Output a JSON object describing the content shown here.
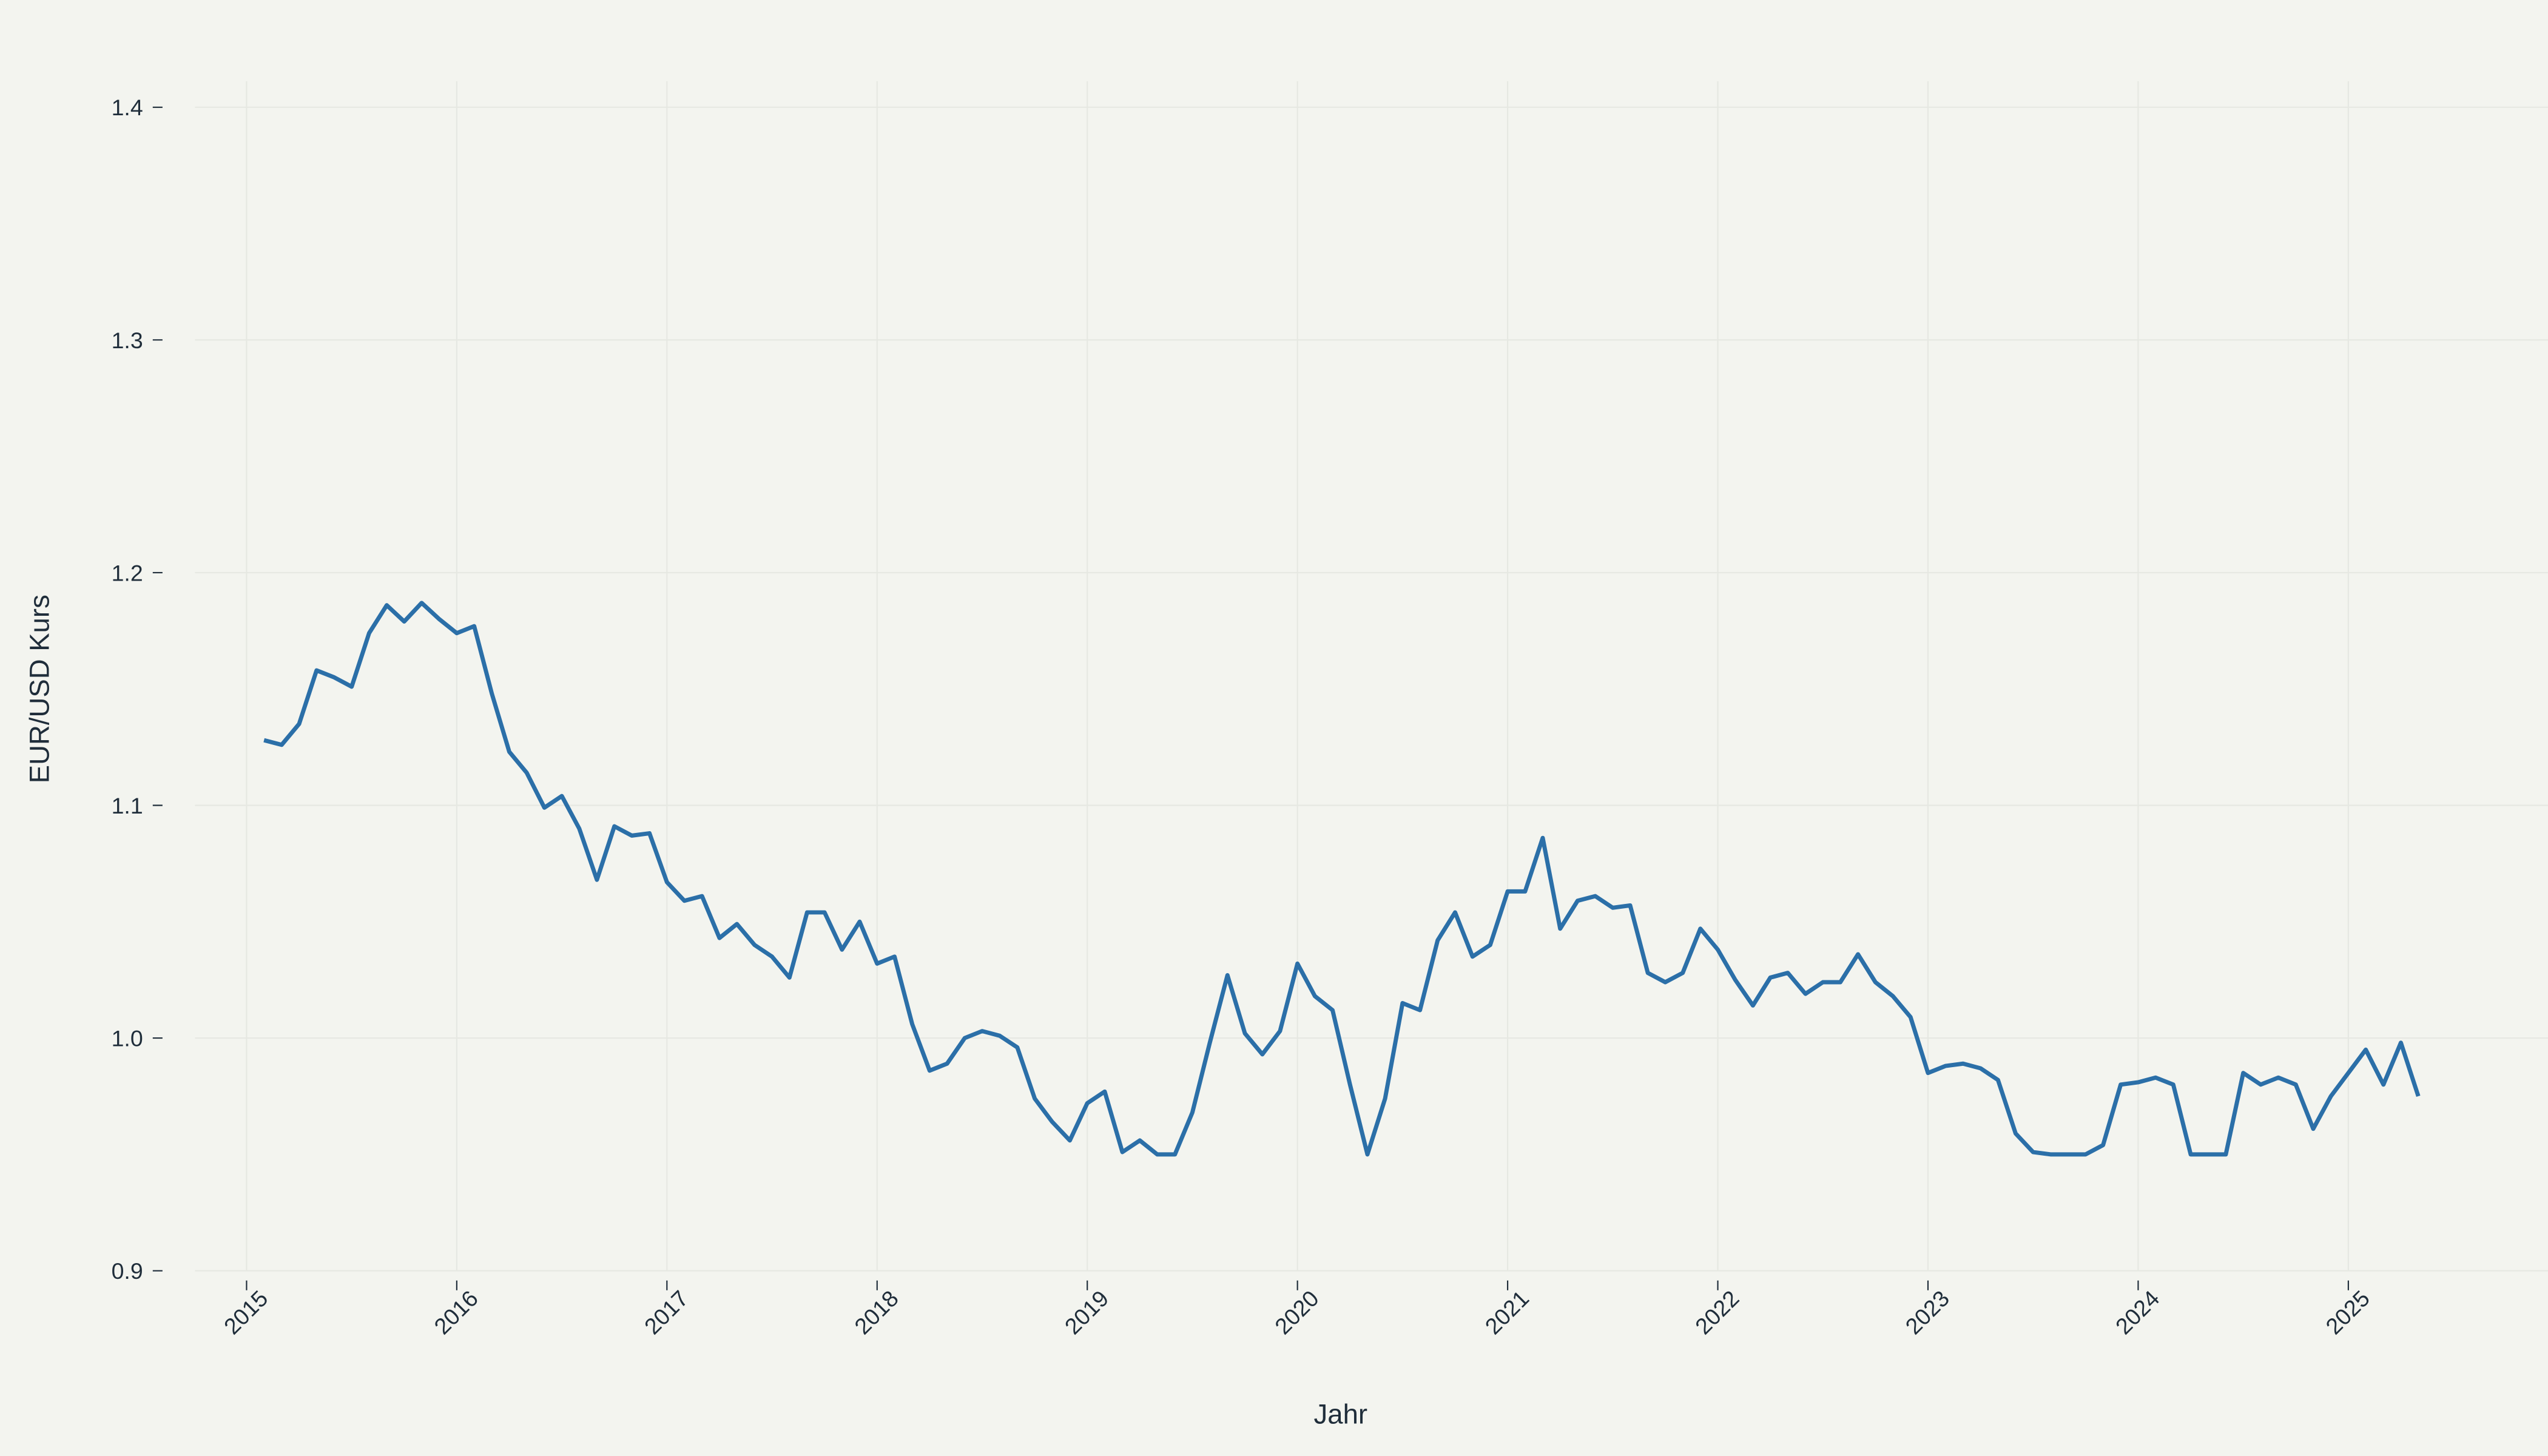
{
  "chart_data": {
    "type": "line",
    "x_label": "Jahr",
    "y_label": "EUR/USD Kurs",
    "xlim": [
      2014.6,
      2025.95
    ],
    "ylim": [
      0.9,
      1.4
    ],
    "xticks": [
      2015,
      2016,
      2017,
      2018,
      2019,
      2020,
      2021,
      2022,
      2023,
      2024,
      2025
    ],
    "yticks": [
      0.9,
      {
        "value": 1.0,
        "label": "1.0"
      },
      1.1,
      1.2,
      1.3,
      1.4
    ],
    "grid": true,
    "x": [
      2015.083,
      2015.167,
      2015.25,
      2015.333,
      2015.417,
      2015.5,
      2015.583,
      2015.667,
      2015.75,
      2015.833,
      2015.917,
      2016,
      2016.083,
      2016.167,
      2016.25,
      2016.333,
      2016.417,
      2016.5,
      2016.583,
      2016.667,
      2016.75,
      2016.833,
      2016.917,
      2017,
      2017.083,
      2017.167,
      2017.25,
      2017.333,
      2017.417,
      2017.5,
      2017.583,
      2017.667,
      2017.75,
      2017.833,
      2017.917,
      2018,
      2018.083,
      2018.167,
      2018.25,
      2018.333,
      2018.417,
      2018.5,
      2018.583,
      2018.667,
      2018.75,
      2018.833,
      2018.917,
      2019,
      2019.083,
      2019.167,
      2019.25,
      2019.333,
      2019.417,
      2019.5,
      2019.583,
      2019.667,
      2019.75,
      2019.833,
      2019.917,
      2020,
      2020.083,
      2020.167,
      2020.25,
      2020.333,
      2020.417,
      2020.5,
      2020.583,
      2020.667,
      2020.75,
      2020.833,
      2020.917,
      2021,
      2021.083,
      2021.167,
      2021.25,
      2021.333,
      2021.417,
      2021.5,
      2021.583,
      2021.667,
      2021.75,
      2021.833,
      2021.917,
      2022,
      2022.083,
      2022.167,
      2022.25,
      2022.333,
      2022.417,
      2022.5,
      2022.583,
      2022.667,
      2022.75,
      2022.833,
      2022.917,
      2023,
      2023.083,
      2023.167,
      2023.25,
      2023.333,
      2023.417,
      2023.5,
      2023.583,
      2023.667,
      2023.75,
      2023.833,
      2023.917,
      2024,
      2024.083,
      2024.167,
      2024.25,
      2024.333,
      2024.417,
      2024.5,
      2024.583,
      2024.667,
      2024.75,
      2024.833,
      2024.917,
      2025,
      2025.083,
      2025.167,
      2025.25,
      2025.333
    ],
    "series": [
      {
        "color": "#2b6fa8",
        "values": [
          1.128,
          1.126,
          1.135,
          1.158,
          1.155,
          1.151,
          1.174,
          1.186,
          1.179,
          1.187,
          1.18,
          1.174,
          1.177,
          1.148,
          1.123,
          1.114,
          1.099,
          1.104,
          1.09,
          1.068,
          1.091,
          1.087,
          1.088,
          1.067,
          1.059,
          1.061,
          1.043,
          1.049,
          1.04,
          1.035,
          1.026,
          1.054,
          1.054,
          1.038,
          1.05,
          1.032,
          1.035,
          1.006,
          0.986,
          0.989,
          1.0,
          1.003,
          1.001,
          0.996,
          0.974,
          0.964,
          0.956,
          0.972,
          0.977,
          0.951,
          0.956,
          0.95,
          0.95,
          0.968,
          0.998,
          1.027,
          1.002,
          0.993,
          1.003,
          1.032,
          1.018,
          1.012,
          0.98,
          0.95,
          0.974,
          1.015,
          1.012,
          1.042,
          1.054,
          1.035,
          1.04,
          1.063,
          1.063,
          1.086,
          1.047,
          1.059,
          1.061,
          1.056,
          1.057,
          1.028,
          1.024,
          1.028,
          1.047,
          1.038,
          1.025,
          1.014,
          1.026,
          1.028,
          1.019,
          1.024,
          1.024,
          1.036,
          1.024,
          1.018,
          1.009,
          0.985,
          0.988,
          0.989,
          0.987,
          0.982,
          0.959,
          0.951,
          0.95,
          0.95,
          0.95,
          0.954,
          0.98,
          0.981,
          0.983,
          0.98,
          0.95,
          0.95,
          0.95,
          0.985,
          0.98,
          0.983,
          0.98,
          0.961,
          0.975,
          0.985,
          0.995,
          0.98,
          0.998,
          0.975
        ]
      }
    ]
  }
}
